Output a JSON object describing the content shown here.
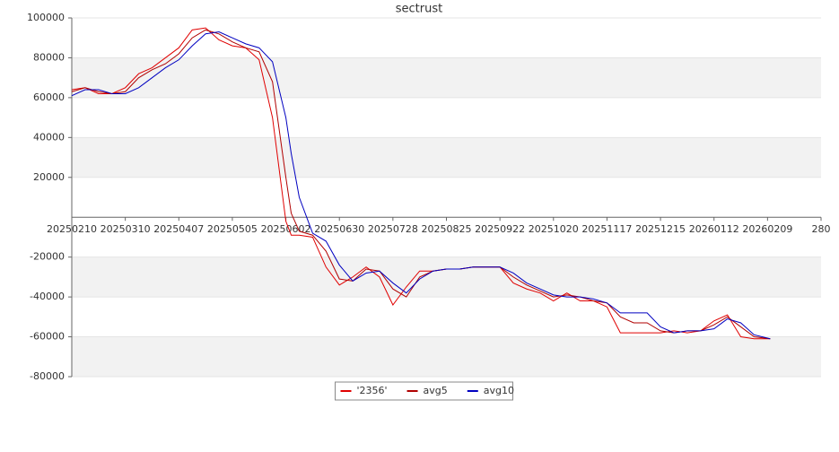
{
  "chart_data": {
    "type": "line",
    "title": "sectrust",
    "x": [
      0,
      5,
      10,
      15,
      20,
      25,
      30,
      35,
      40,
      45,
      50,
      55,
      60,
      65,
      70,
      75,
      80,
      82,
      85,
      90,
      95,
      100,
      105,
      110,
      115,
      120,
      125,
      130,
      135,
      140,
      145,
      150,
      155,
      160,
      165,
      170,
      175,
      180,
      185,
      190,
      195,
      200,
      205,
      210,
      215,
      220,
      225,
      230,
      235,
      240,
      245,
      250,
      255,
      261
    ],
    "series": [
      {
        "name": "'2356'",
        "color": "#e00000",
        "values": [
          64000,
          65000,
          62000,
          62000,
          65000,
          72000,
          75000,
          80000,
          85000,
          94000,
          95000,
          89000,
          86000,
          85000,
          79000,
          50000,
          -2000,
          -9000,
          -9000,
          -10000,
          -25000,
          -34000,
          -30000,
          -25000,
          -30000,
          -44000,
          -35000,
          -27000,
          -27000,
          -26000,
          -26000,
          -25000,
          -25000,
          -25000,
          -33000,
          -36000,
          -38000,
          -42000,
          -38000,
          -42000,
          -42000,
          -45000,
          -58000,
          -58000,
          -58000,
          -58000,
          -57000,
          -58000,
          -57000,
          -52000,
          -49000,
          -60000,
          -61000,
          -61000
        ]
      },
      {
        "name": "avg5",
        "color": "#b00000",
        "values": [
          63000,
          65000,
          63000,
          62000,
          63000,
          70000,
          74000,
          77000,
          82000,
          90000,
          94000,
          92000,
          88000,
          85000,
          83000,
          68000,
          20000,
          2000,
          -7000,
          -9000,
          -17000,
          -31000,
          -32000,
          -26000,
          -27000,
          -36000,
          -40000,
          -30000,
          -27000,
          -26000,
          -26000,
          -25000,
          -25000,
          -25000,
          -30000,
          -34000,
          -37000,
          -40000,
          -39000,
          -40000,
          -42000,
          -43000,
          -50000,
          -53000,
          -53000,
          -57000,
          -58000,
          -57000,
          -57000,
          -54000,
          -50000,
          -55000,
          -60000,
          -61000
        ]
      },
      {
        "name": "avg10",
        "color": "#0000c0",
        "values": [
          61000,
          64000,
          64000,
          62000,
          62000,
          65000,
          70000,
          75000,
          79000,
          86000,
          92000,
          93000,
          90000,
          87000,
          85000,
          78000,
          50000,
          32000,
          10000,
          -8000,
          -12000,
          -24000,
          -32000,
          -28000,
          -27000,
          -33000,
          -38000,
          -31000,
          -27000,
          -26000,
          -26000,
          -25000,
          -25000,
          -25000,
          -28000,
          -33000,
          -36000,
          -39000,
          -40000,
          -40000,
          -41000,
          -43000,
          -48000,
          -48000,
          -48000,
          -55000,
          -58000,
          -57000,
          -57000,
          -56000,
          -51000,
          -53000,
          -59000,
          -61000
        ]
      }
    ],
    "xlim": [
      0,
      280
    ],
    "xticks": [
      {
        "value": 0,
        "label": "20250210"
      },
      {
        "value": 20,
        "label": "20250310"
      },
      {
        "value": 40,
        "label": "20250407"
      },
      {
        "value": 60,
        "label": "20250505"
      },
      {
        "value": 80,
        "label": "20250602"
      },
      {
        "value": 100,
        "label": "20250630"
      },
      {
        "value": 120,
        "label": "20250728"
      },
      {
        "value": 140,
        "label": "20250825"
      },
      {
        "value": 160,
        "label": "20250922"
      },
      {
        "value": 180,
        "label": "20251020"
      },
      {
        "value": 200,
        "label": "20251117"
      },
      {
        "value": 220,
        "label": "20251215"
      },
      {
        "value": 240,
        "label": "20260112"
      },
      {
        "value": 260,
        "label": "20260209"
      },
      280
    ],
    "ylim": [
      -80000,
      100000
    ],
    "yticks": [
      -80000,
      -60000,
      -40000,
      -20000,
      20000,
      40000,
      60000,
      80000,
      100000
    ],
    "grid": true,
    "legend": "bottom"
  }
}
